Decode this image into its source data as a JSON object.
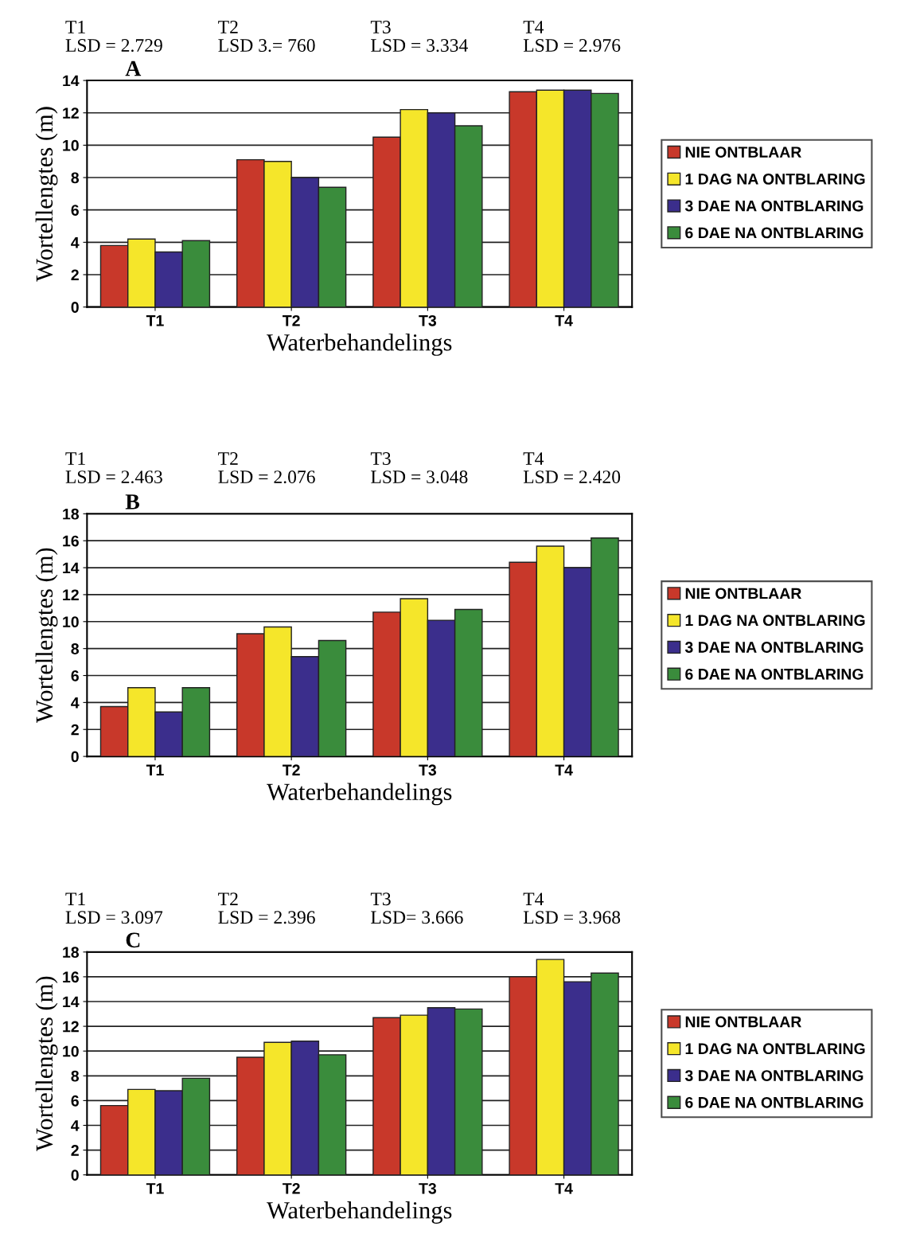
{
  "chart_data": [
    {
      "type": "bar",
      "title": "A",
      "xlabel": "Waterbehandelings",
      "ylabel": "Wortellengtes (m)",
      "categories": [
        "T1",
        "T2",
        "T3",
        "T4"
      ],
      "series": [
        {
          "name": "NIE ONTBLAAR",
          "color": "#c8382a",
          "values": [
            3.8,
            9.1,
            10.5,
            13.3
          ]
        },
        {
          "name": "1 DAG NA ONTBLARING",
          "color": "#f5e62a",
          "values": [
            4.2,
            9.0,
            12.2,
            13.4
          ]
        },
        {
          "name": "3 DAE NA ONTBLARING",
          "color": "#3b2e8c",
          "values": [
            3.4,
            8.0,
            12.0,
            13.4
          ]
        },
        {
          "name": "6 DAE NA ONTBLARING",
          "color": "#3a8c3c",
          "values": [
            4.1,
            7.4,
            11.2,
            13.2
          ]
        }
      ],
      "ylim": [
        0,
        14
      ],
      "yticks": [
        0,
        2,
        4,
        6,
        8,
        10,
        12,
        14
      ],
      "grid": "y",
      "legend": "right",
      "annotations": [
        "T1\nLSD = 2.729",
        "T2\nLSD 3.= 760",
        "T3\nLSD = 3.334",
        "T4\nLSD = 2.976"
      ]
    },
    {
      "type": "bar",
      "title": "B",
      "xlabel": "Waterbehandelings",
      "ylabel": "Wortellengtes (m)",
      "categories": [
        "T1",
        "T2",
        "T3",
        "T4"
      ],
      "series": [
        {
          "name": "NIE ONTBLAAR",
          "color": "#c8382a",
          "values": [
            3.7,
            9.1,
            10.7,
            14.4
          ]
        },
        {
          "name": "1 DAG NA ONTBLARING",
          "color": "#f5e62a",
          "values": [
            5.1,
            9.6,
            11.7,
            15.6
          ]
        },
        {
          "name": "3 DAE NA ONTBLARING",
          "color": "#3b2e8c",
          "values": [
            3.3,
            7.4,
            10.1,
            14.0
          ]
        },
        {
          "name": "6 DAE NA ONTBLARING",
          "color": "#3a8c3c",
          "values": [
            5.1,
            8.6,
            10.9,
            16.2
          ]
        }
      ],
      "ylim": [
        0,
        18
      ],
      "yticks": [
        0,
        2,
        4,
        6,
        8,
        10,
        12,
        14,
        16,
        18
      ],
      "grid": "y",
      "legend": "right",
      "annotations": [
        "T1\nLSD = 2.463",
        "T2\nLSD = 2.076",
        "T3\nLSD = 3.048",
        "T4\nLSD = 2.420"
      ]
    },
    {
      "type": "bar",
      "title": "C",
      "xlabel": "Waterbehandelings",
      "ylabel": "Wortellengtes (m)",
      "categories": [
        "T1",
        "T2",
        "T3",
        "T4"
      ],
      "series": [
        {
          "name": "NIE ONTBLAAR",
          "color": "#c8382a",
          "values": [
            5.6,
            9.5,
            12.7,
            16.0
          ]
        },
        {
          "name": "1 DAG NA ONTBLARING",
          "color": "#f5e62a",
          "values": [
            6.9,
            10.7,
            12.9,
            17.4
          ]
        },
        {
          "name": "3 DAE NA ONTBLARING",
          "color": "#3b2e8c",
          "values": [
            6.8,
            10.8,
            13.5,
            15.6
          ]
        },
        {
          "name": "6 DAE NA ONTBLARING",
          "color": "#3a8c3c",
          "values": [
            7.8,
            9.7,
            13.4,
            16.3
          ]
        }
      ],
      "ylim": [
        0,
        18
      ],
      "yticks": [
        0,
        2,
        4,
        6,
        8,
        10,
        12,
        14,
        16,
        18
      ],
      "grid": "y",
      "legend": "right",
      "annotations": [
        "T1\nLSD = 3.097",
        "T2\nLSD = 2.396",
        "T3\nLSD= 3.666",
        "T4\nLSD = 3.968"
      ]
    }
  ]
}
